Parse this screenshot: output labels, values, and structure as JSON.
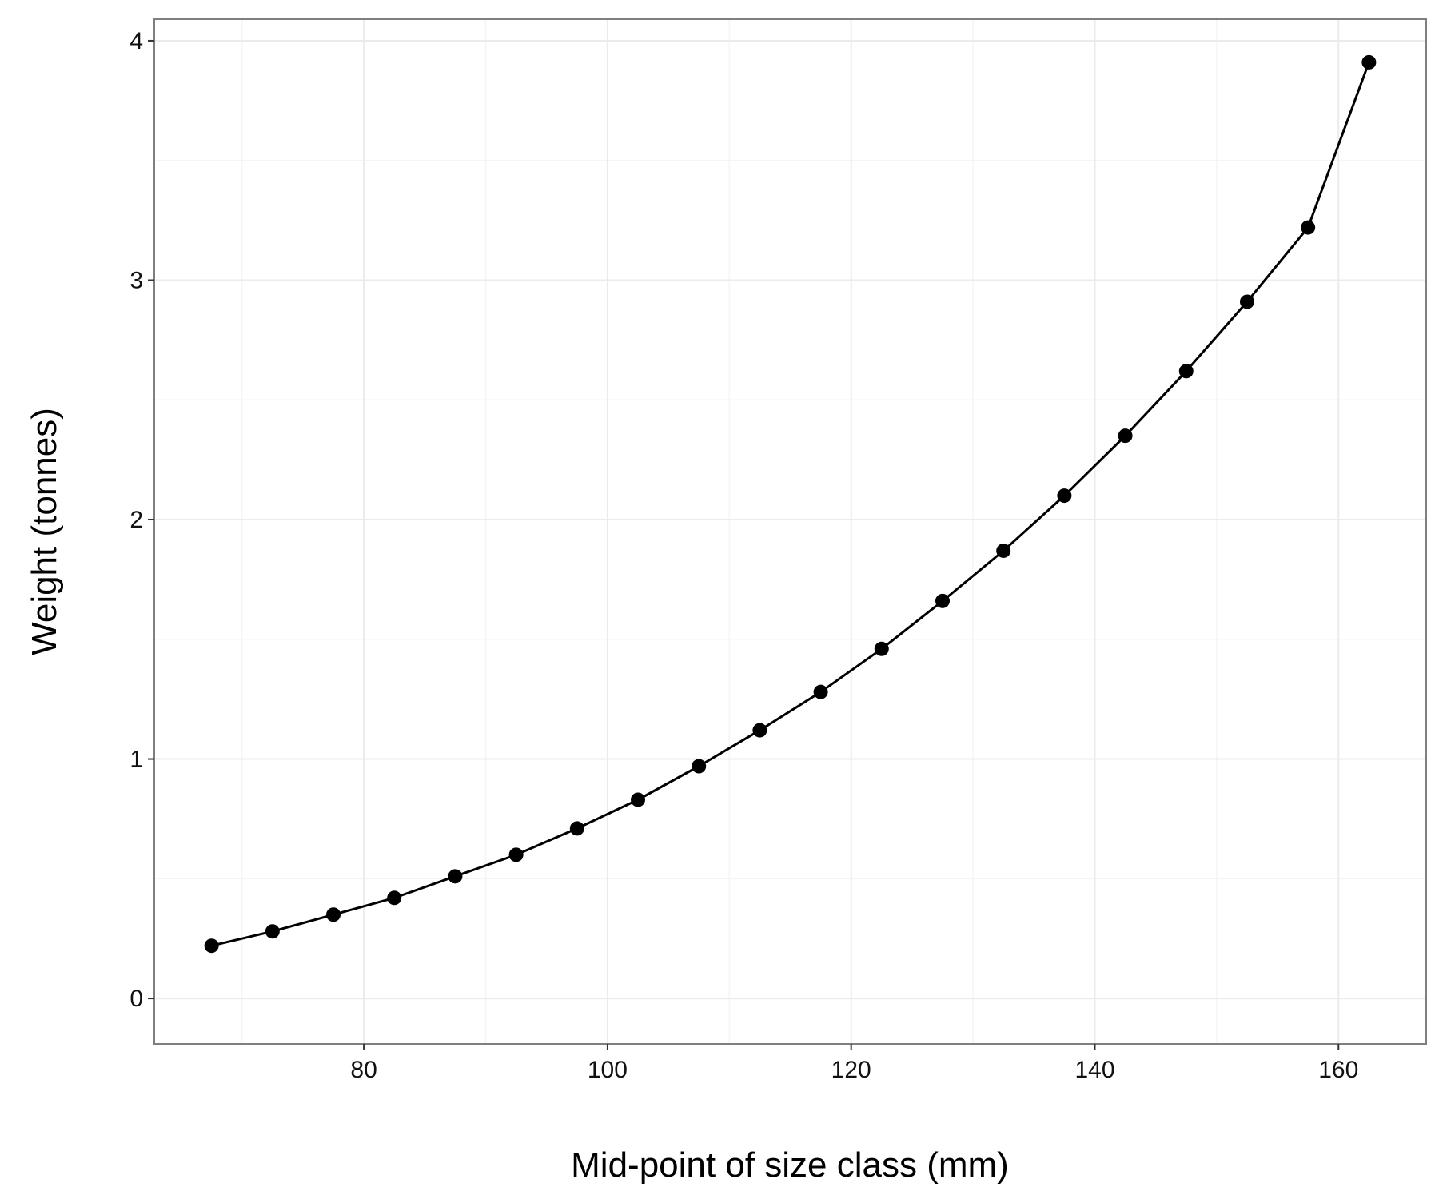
{
  "chart_data": {
    "type": "line",
    "title": "",
    "xlabel": "Mid-point of size class (mm)",
    "ylabel": "Weight (tonnes)",
    "xlim": [
      62.8,
      167.2
    ],
    "ylim": [
      -0.19,
      4.09
    ],
    "x_ticks": [
      80,
      100,
      120,
      140,
      160
    ],
    "y_ticks": [
      0,
      1,
      2,
      3,
      4
    ],
    "x_minor_ticks": [
      70,
      90,
      110,
      130,
      150
    ],
    "y_minor_ticks": [
      0.5,
      1.5,
      2.5,
      3.5
    ],
    "grid": true,
    "markers": true,
    "series": [
      {
        "x": [
          67.5,
          72.5,
          77.5,
          82.5,
          87.5,
          92.5,
          97.5,
          102.5,
          107.5,
          112.5,
          117.5,
          122.5,
          127.5,
          132.5,
          137.5,
          142.5,
          147.5,
          152.5,
          157.5,
          162.5
        ],
        "values": [
          0.22,
          0.28,
          0.35,
          0.42,
          0.51,
          0.6,
          0.71,
          0.83,
          0.97,
          1.12,
          1.28,
          1.46,
          1.66,
          1.87,
          2.1,
          2.35,
          2.62,
          2.91,
          3.22,
          3.91
        ]
      }
    ],
    "colors": {
      "line": "#000000",
      "points": "#000000",
      "grid_major": "#ebebeb",
      "grid_minor": "#f5f5f5",
      "border": "#7f7f7f",
      "background": "#ffffff"
    }
  }
}
